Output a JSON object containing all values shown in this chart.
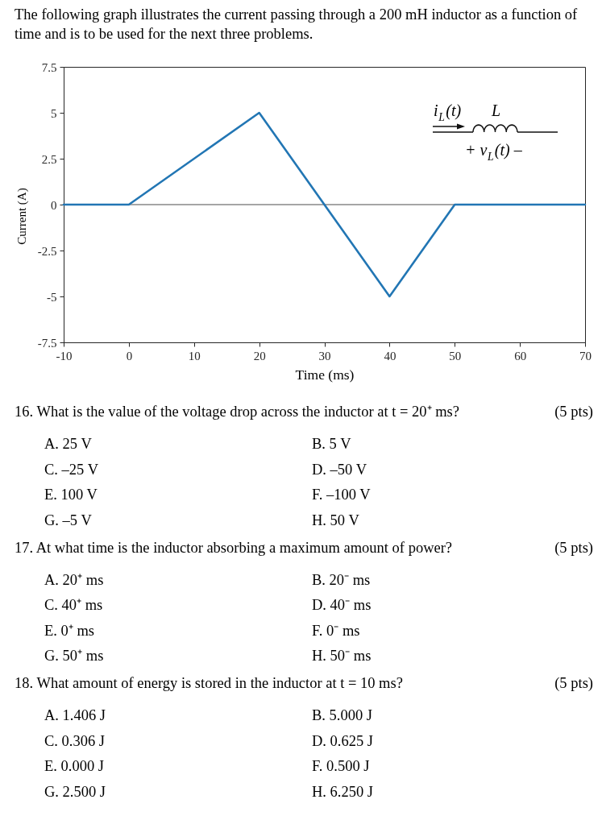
{
  "chart_data": {
    "type": "line",
    "title": "The following graph illustrates the current passing through a 200 mH inductor as a function of time and is to be used for the next three problems.",
    "xlabel": "Time (ms)",
    "ylabel": "Current (A)",
    "x": [
      -10,
      0,
      20,
      40,
      50,
      70
    ],
    "values": [
      0,
      0,
      5,
      -5,
      0,
      0
    ],
    "color": "#2276b4",
    "xlim": [
      -10,
      70
    ],
    "ylim": [
      -7.5,
      7.5
    ],
    "xticks": [
      -10,
      0,
      10,
      20,
      30,
      40,
      50,
      60,
      70
    ],
    "yticks": [
      -7.5,
      -5,
      -2.5,
      0,
      2.5,
      5,
      7.5
    ],
    "ref_lines": [
      {
        "axis": "y",
        "value": 0,
        "color": "#4d4d4d"
      }
    ],
    "annotations": [
      "i$_{L}$(t)",
      "L",
      "+ v$_{L}$(t) –",
      "16. What is the value of the voltage drop across the inductor at t = 20⁺ ms?",
      "(5 pts)",
      "A. 25 V",
      "B. 5 V",
      "C. –25 V",
      "D. –50 V",
      "E. 100 V",
      "F. –100 V",
      "G. –5 V",
      "H. 50 V",
      "17. At what time is the inductor absorbing a maximum amount of power?",
      "(5 pts)",
      "A. 20⁺ ms",
      "B. 20⁻ ms",
      "C. 40⁺ ms",
      "D. 40⁻ ms",
      "E. 0⁺ ms",
      "F. 0⁻ ms",
      "G. 50⁺ ms",
      "H. 50⁻ ms",
      "18. What amount of energy is stored in the inductor at t = 10 ms?",
      "(5 pts)",
      "A. 1.406 J",
      "B. 5.000 J",
      "C. 0.306 J",
      "D. 0.625 J",
      "E. 0.000 J",
      "F. 0.500 J",
      "G. 2.500 J",
      "H. 6.250 J"
    ]
  }
}
